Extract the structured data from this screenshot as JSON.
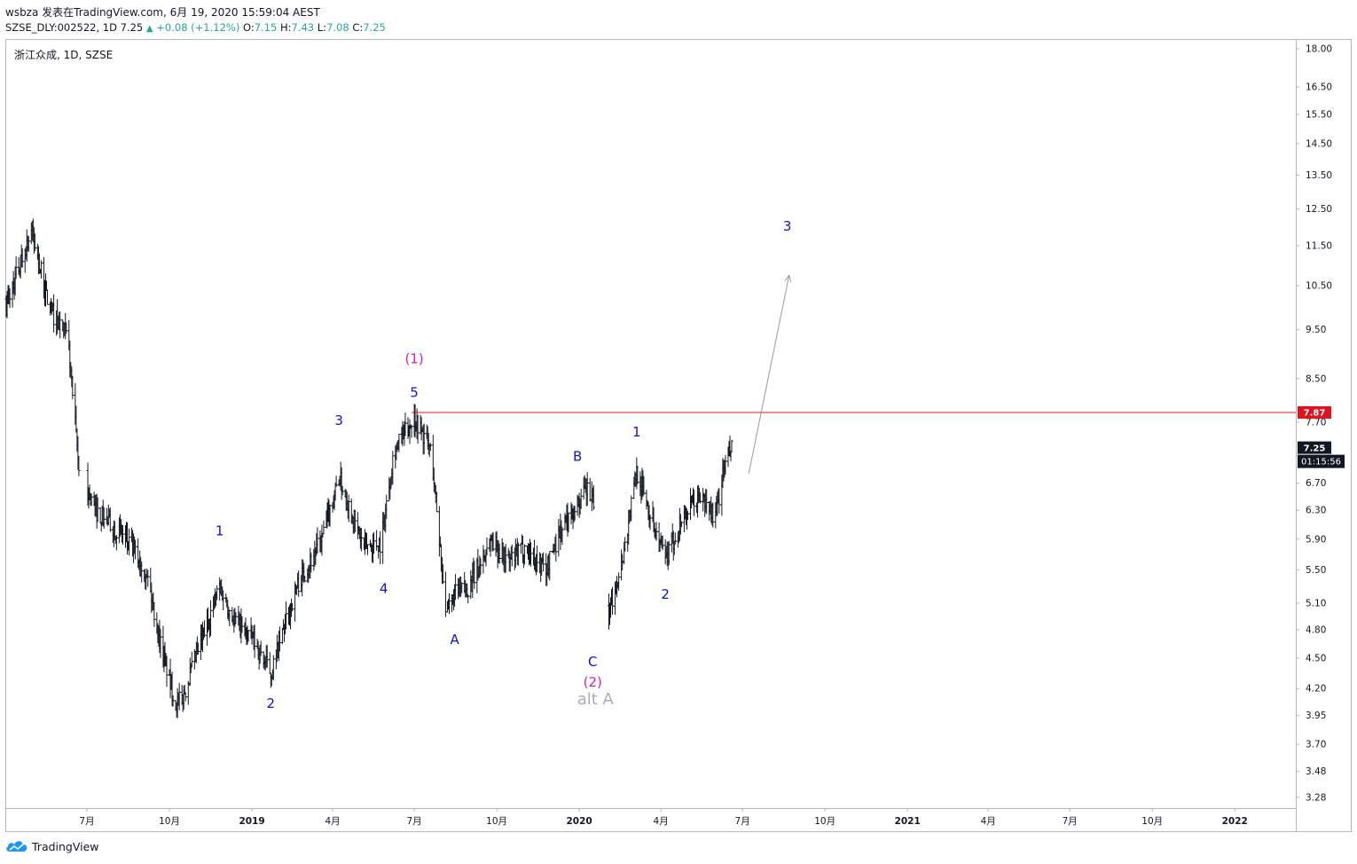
{
  "header": {
    "publish_line": "wsbza 发表在TradingView.com, 6月 19, 2020 15:59:04 AEST",
    "symbol_prefix": "SZSE_DLY:002522, 1D 7.25",
    "change": "+0.08 (+1.12%)",
    "o_label": "O:",
    "o_value": "7.15",
    "h_label": "H:",
    "h_value": "7.43",
    "l_label": "L:",
    "l_value": "7.08",
    "c_label": "C:",
    "c_value": "7.25"
  },
  "footer": {
    "brand": "TradingView"
  },
  "colors": {
    "candles": "#131722",
    "blue_labels": "#1010d8",
    "magenta_labels": "#e01ab8",
    "grey_label": "#a8adb8",
    "resistance_line": "#e0141e",
    "projection_arrow": "#9a9a9a",
    "last_price_tag": "#131722"
  },
  "chart_data": {
    "type": "line",
    "title": "浙江众成, 1D, SZSE",
    "scale": "log",
    "ylim": [
      3.2,
      18.4
    ],
    "y_ticks": [
      "18.00",
      "16.50",
      "15.50",
      "14.50",
      "13.50",
      "12.50",
      "11.50",
      "10.50",
      "9.50",
      "8.50",
      "7.70",
      "6.70",
      "6.30",
      "5.90",
      "5.50",
      "5.10",
      "4.80",
      "4.50",
      "4.20",
      "3.95",
      "3.70",
      "3.48",
      "3.28"
    ],
    "x_ticks": [
      "7月",
      "10月",
      "2019",
      "4月",
      "7月",
      "10月",
      "2020",
      "4月",
      "7月",
      "10月",
      "2021",
      "4月",
      "7月",
      "10月",
      "2022"
    ],
    "xlim": [
      "2018-04-01",
      "2022-03-10"
    ],
    "series": [
      {
        "name": "",
        "x": [
          "2018-04-01",
          "2018-04-30",
          "2018-05-20",
          "2018-06-10",
          "2018-06-22",
          "2018-07-10",
          "2018-08-10",
          "2018-09-05",
          "2018-09-20",
          "2018-10-08",
          "2018-10-15",
          "2018-11-01",
          "2018-11-26",
          "2018-12-10",
          "2019-01-02",
          "2019-01-22",
          "2019-02-20",
          "2019-03-20",
          "2019-04-08",
          "2019-05-05",
          "2019-05-25",
          "2019-06-08",
          "2019-06-24",
          "2019-07-01",
          "2019-07-20",
          "2019-08-06",
          "2019-08-15",
          "2019-09-01",
          "2019-09-25",
          "2019-10-15",
          "2019-11-01",
          "2019-11-25",
          "2019-12-10",
          "2019-12-25",
          "2020-01-10",
          "2020-01-16",
          "2020-02-03",
          "2020-02-20",
          "2020-03-05",
          "2020-03-23",
          "2020-04-06",
          "2020-04-25",
          "2020-05-15",
          "2020-06-01",
          "2020-06-10",
          "2020-06-19"
        ],
        "y": [
          10.0,
          11.9,
          10.0,
          9.3,
          6.9,
          6.3,
          5.95,
          5.5,
          4.7,
          4.05,
          4.1,
          4.55,
          5.3,
          4.95,
          4.7,
          4.35,
          5.3,
          5.9,
          6.8,
          5.8,
          5.85,
          7.2,
          7.6,
          7.8,
          7.2,
          4.95,
          5.2,
          5.3,
          5.9,
          5.6,
          5.8,
          5.5,
          6.0,
          6.3,
          6.6,
          6.4,
          5.0,
          5.75,
          6.9,
          6.15,
          5.6,
          6.2,
          6.5,
          6.2,
          6.9,
          7.25
        ]
      }
    ],
    "resistance_level": "7.87",
    "last_price": "7.25",
    "countdown": "01:15:56",
    "wave_labels": [
      {
        "text": "1",
        "date": "2018-11-26",
        "price": 5.95,
        "color": "blue"
      },
      {
        "text": "2",
        "date": "2019-01-22",
        "price": 4.02,
        "color": "blue"
      },
      {
        "text": "3",
        "date": "2019-04-08",
        "price": 7.65,
        "color": "blue"
      },
      {
        "text": "4",
        "date": "2019-05-28",
        "price": 5.22,
        "color": "blue"
      },
      {
        "text": "5",
        "date": "2019-07-01",
        "price": 8.15,
        "color": "blue"
      },
      {
        "text": "(1)",
        "date": "2019-07-01",
        "price": 8.8,
        "color": "magenta"
      },
      {
        "text": "A",
        "date": "2019-08-15",
        "price": 4.65,
        "color": "blue"
      },
      {
        "text": "B",
        "date": "2019-12-30",
        "price": 7.05,
        "color": "blue"
      },
      {
        "text": "C",
        "date": "2020-01-16",
        "price": 4.42,
        "color": "blue"
      },
      {
        "text": "(2)",
        "date": "2020-01-16",
        "price": 4.22,
        "color": "magenta"
      },
      {
        "text": "alt A",
        "date": "2020-01-19",
        "price": 4.05,
        "color": "grey"
      },
      {
        "text": "1",
        "date": "2020-03-05",
        "price": 7.45,
        "color": "blue"
      },
      {
        "text": "2",
        "date": "2020-04-06",
        "price": 5.15,
        "color": "blue"
      },
      {
        "text": "3",
        "date": "2020-08-20",
        "price": 11.9,
        "color": "blue"
      }
    ],
    "projection": {
      "from_date": "2020-07-08",
      "from_price": 6.85,
      "to_date": "2020-08-22",
      "to_price": 10.75
    }
  }
}
